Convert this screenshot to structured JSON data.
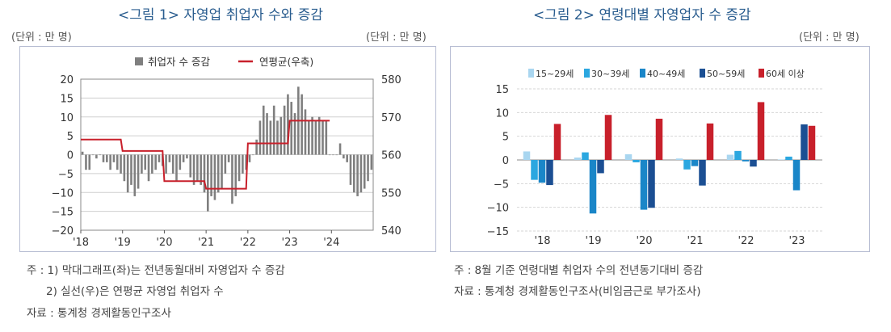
{
  "left": {
    "title": "<그림 1> 자영업 취업자 수와 증감",
    "unit_left": "(단위 : 만 명)",
    "unit_right": "(단위 : 만 명)",
    "notes": [
      "주 : 1) 막대그래프(좌)는 전년동월대비 자영업자 수 증감",
      "2) 실선(우)은 연평균 자영업 취업자 수",
      "자료 : 통계청 경제활동인구조사"
    ]
  },
  "right": {
    "title": "<그림 2> 연령대별 자영업자 수 증감",
    "unit": "(단위 : 만 명)",
    "notes": [
      "주 : 8월 기준 연령대별 취업자 수의 전년동기대비 증감",
      "자료 : 통계청 경제활동인구조사(비임금근로 부가조사)"
    ]
  },
  "colors": {
    "bar_gray": "#7f7f7f",
    "line_red": "#c8202b",
    "age_15_29": "#a9d6f0",
    "age_30_39": "#2ba7e0",
    "age_40_49": "#1a86c8",
    "age_50_59": "#1b4f93",
    "age_60_plus": "#c8202b"
  },
  "chart_data": [
    {
      "type": "bar",
      "legend": [
        "취업자 수 증감",
        "연평균(우축)"
      ],
      "x_ticks": [
        "'18",
        "'19",
        "'20",
        "'21",
        "'22",
        "'23",
        "'24"
      ],
      "y_left": {
        "min": -20,
        "max": 20,
        "step": 5
      },
      "y_right": {
        "min": 540,
        "max": 580,
        "step": 10
      },
      "monthly_change_start": "2018-01",
      "monthly_change": [
        0.8,
        -4,
        -4,
        0,
        -1,
        0,
        -2,
        -2,
        -4,
        -2,
        -4,
        -5,
        -7,
        -10,
        -8,
        -11,
        -9,
        -5,
        -4,
        -7,
        -5,
        -4,
        -2,
        -3,
        -5,
        -2,
        -5,
        -7,
        -4,
        -2,
        -1,
        -6,
        -8,
        -7,
        -8,
        -10,
        -15,
        -11,
        -12,
        -10,
        -9,
        -5,
        -2,
        -13,
        -11,
        -7,
        -5,
        -4,
        -2,
        0,
        4,
        9,
        13,
        11,
        9,
        13,
        9,
        10,
        13,
        16,
        14,
        11,
        18,
        16,
        12,
        9,
        10,
        9,
        10,
        9,
        9,
        0,
        0,
        0,
        3,
        -1,
        -2,
        -8,
        -10,
        -11,
        -10,
        -9,
        -7,
        -4
      ],
      "annual_average": [
        {
          "year": "'18",
          "value": 564
        },
        {
          "year": "'19",
          "value": 561
        },
        {
          "year": "'20",
          "value": 553
        },
        {
          "year": "'21",
          "value": 551
        },
        {
          "year": "'22",
          "value": 563
        },
        {
          "year": "'23",
          "value": 569
        }
      ]
    },
    {
      "type": "bar",
      "categories": [
        "'18",
        "'19",
        "'20",
        "'21",
        "'22",
        "'23"
      ],
      "ylim": [
        -15,
        15
      ],
      "yticks": [
        15,
        10,
        5,
        0,
        -5,
        -10,
        -15
      ],
      "series": [
        {
          "name": "15~29세",
          "values": [
            1.8,
            0.5,
            1.2,
            0.3,
            1.1,
            0.1
          ]
        },
        {
          "name": "30~39세",
          "values": [
            -4.2,
            1.6,
            -0.5,
            -2.0,
            1.9,
            0.7
          ]
        },
        {
          "name": "40~49세",
          "values": [
            -4.8,
            -11.3,
            -10.5,
            -1.3,
            -0.3,
            -6.4
          ]
        },
        {
          "name": "50~59세",
          "values": [
            -5.3,
            -2.8,
            -10.1,
            -5.4,
            -1.4,
            7.5
          ]
        },
        {
          "name": "60세 이상",
          "values": [
            7.6,
            9.5,
            8.7,
            7.7,
            12.2,
            7.2
          ]
        }
      ]
    }
  ]
}
